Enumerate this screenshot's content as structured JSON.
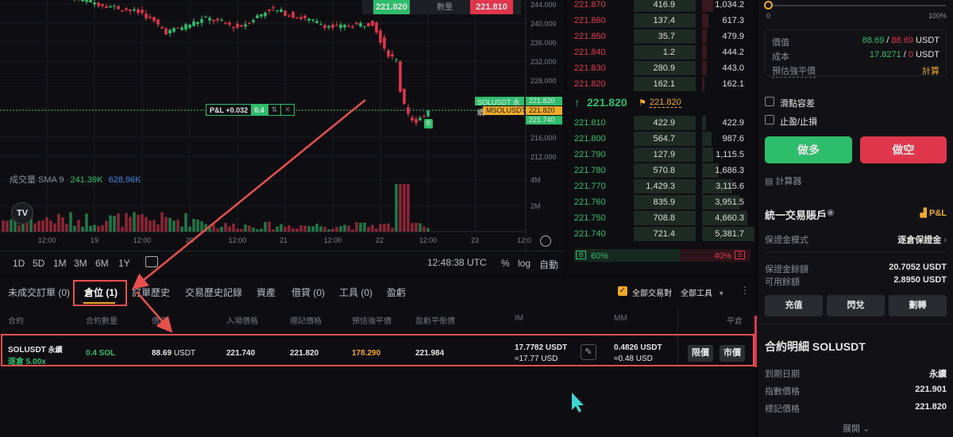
{
  "chart": {
    "price_ticks": [
      "244.000",
      "240.000",
      "236.000",
      "232.000",
      "228.000",
      "216.000",
      "212.000"
    ],
    "volume_ticks": [
      "4M",
      "2M"
    ],
    "time_ticks": [
      "12:00",
      "19",
      "12:00",
      "20",
      "12:00",
      "21",
      "12:00",
      "22",
      "12:00",
      "23",
      "12:0"
    ],
    "order_widget": {
      "buy": "221.820",
      "qty_label": "數量",
      "sell": "221.810"
    },
    "pnl_label": "P&L +0.032",
    "pnl_qty": "0.4",
    "labels": {
      "symbol": "SOLUSDT 永續",
      "symbol_price": "221.820",
      "mark": "MSOLUSDT",
      "mark_price": "221.820",
      "entry_price": "221.740"
    },
    "entry_marker": "B",
    "volume_legend": {
      "name": "成交量 SMA 9",
      "v1": "241.39K",
      "v2": "628.96K"
    },
    "timeframes": [
      "1D",
      "5D",
      "1M",
      "3M",
      "6M",
      "1Y"
    ],
    "clock": "12:48:38 UTC",
    "percent": "%",
    "log": "log",
    "auto": "自動",
    "colors": {
      "up": "#2ebd6b",
      "down": "#e0364c"
    }
  },
  "orderbook": {
    "asks": [
      [
        "221.870",
        "416.9",
        "1,034.2"
      ],
      [
        "221.860",
        "137.4",
        "617.3"
      ],
      [
        "221.850",
        "35.7",
        "479.9"
      ],
      [
        "221.840",
        "1.2",
        "444.2"
      ],
      [
        "221.830",
        "280.9",
        "443.0"
      ],
      [
        "221.820",
        "162.1",
        "162.1"
      ]
    ],
    "last_price": "221.820",
    "mark_price": "221.820",
    "bids": [
      [
        "221.810",
        "422.9",
        "422.9"
      ],
      [
        "221.800",
        "564.7",
        "987.6"
      ],
      [
        "221.790",
        "127.9",
        "1,115.5"
      ],
      [
        "221.780",
        "570.8",
        "1,686.3"
      ],
      [
        "221.770",
        "1,429.3",
        "3,115.6"
      ],
      [
        "221.760",
        "835.9",
        "3,951.5"
      ],
      [
        "221.750",
        "708.8",
        "4,660.3"
      ],
      [
        "221.740",
        "721.4",
        "5,381.7"
      ]
    ],
    "buy_label": "B",
    "buy_pct": "60%",
    "sell_pct": "40%",
    "sell_label": "S",
    "buy_ratio": 60
  },
  "order_panel": {
    "slider_min": "0",
    "slider_max": "100%",
    "slider_value": 0,
    "value_label": "價值",
    "value_long": "88.69",
    "value_short": "88.69",
    "unit": "USDT",
    "cost_label": "成本",
    "cost_long": "17.8271",
    "cost_short": "0",
    "liq_label": "預估強平價",
    "liq_action": "計算",
    "slippage": "滑點容差",
    "tpsl": "止盈/止損",
    "long_btn": "做多",
    "short_btn": "做空",
    "calculator": "計算器",
    "account_title": "統一交易賬戶",
    "pnl_link": "P&L",
    "margin_mode_label": "保證金模式",
    "margin_mode": "逐倉保證金",
    "margin_balance_label": "保證金餘額",
    "margin_balance": "20.7052 USDT",
    "available_label": "可用餘額",
    "available": "2.8950 USDT",
    "deposit": "充值",
    "convert": "閃兌",
    "transfer": "劃轉",
    "contract_title": "合約明細 SOLUSDT",
    "details": [
      [
        "到期日期",
        "永續"
      ],
      [
        "指數價格",
        "221.901"
      ],
      [
        "標記價格",
        "221.820"
      ]
    ],
    "expand": "展開"
  },
  "bottom": {
    "tabs": [
      "未成交訂單 (0)",
      "倉位 (1)",
      "訂單歷史",
      "交易歷史記錄",
      "資產",
      "借貸 (0)",
      "工具 (0)",
      "盈虧"
    ],
    "all_pairs": "全部交易對",
    "all_tools": "全部工具",
    "headers": [
      "合約",
      "合約數量",
      "價值",
      "入場價格",
      "標記價格",
      "預估強平價",
      "盈虧平衡價",
      "IM",
      "MM",
      "平倉"
    ],
    "position": {
      "symbol": "SOLUSDT",
      "type": "永續",
      "margin": "逐倉 5.00x",
      "qty": "0.4 SOL",
      "value": "88.69",
      "value_unit": "USDT",
      "entry": "221.740",
      "mark": "221.820",
      "liq": "178.290",
      "breakeven": "221.984",
      "im": "17.7782 USDT",
      "im_usd": "≈17.77 USD",
      "mm": "0.4826 USDT",
      "mm_usd": "≈0.48 USD",
      "limit_btn": "限價",
      "market_btn": "市價"
    }
  }
}
